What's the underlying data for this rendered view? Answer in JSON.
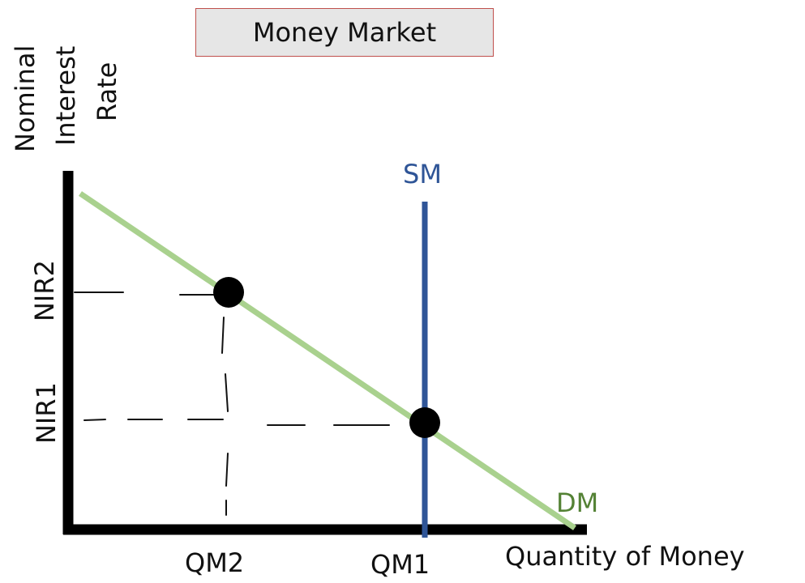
{
  "title": "Money Market",
  "y_axis_label": [
    "Nominal",
    "Interest",
    "Rate"
  ],
  "x_axis_label": "Quantity of Money",
  "curves": {
    "supply": {
      "label": "SM",
      "color": "#2f5597"
    },
    "demand": {
      "label": "DM",
      "color": "#a9d18e",
      "label_color": "#548235"
    }
  },
  "y_ticks": {
    "nir2": "NIR2",
    "nir1": "NIR1"
  },
  "x_ticks": {
    "qm2": "QM2",
    "qm1": "QM1"
  }
}
